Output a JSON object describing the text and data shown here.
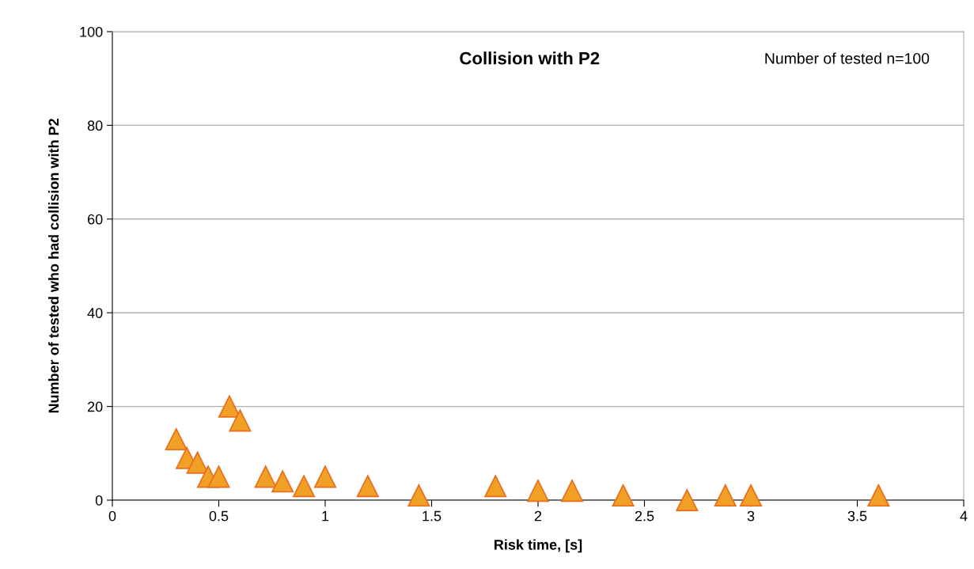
{
  "chart_data": {
    "type": "scatter",
    "title": "Collision with P2",
    "xlabel": "Risk time, [s]",
    "ylabel": "Number of tested who had collision with P2",
    "annotations": [
      "Number of tested n=100"
    ],
    "series": [
      {
        "color": "#f0a024",
        "x": [
          0.3,
          0.35,
          0.4,
          0.45,
          0.5,
          0.55,
          0.6,
          0.72,
          0.8,
          0.9,
          1,
          1.2,
          1.44,
          1.8,
          2,
          2.16,
          2.4,
          2.7,
          2.88,
          3,
          3.6
        ],
        "values": [
          13,
          9,
          8,
          5,
          5,
          20,
          17,
          5,
          4,
          3,
          5,
          3,
          1,
          3,
          2,
          2,
          1,
          0,
          1,
          1,
          1
        ]
      }
    ],
    "marker": "triangle",
    "xlim": [
      0,
      4
    ],
    "xticks": [
      0,
      0.5,
      1,
      1.5,
      2,
      2.5,
      3,
      3.5,
      4
    ],
    "ylim": [
      0,
      100
    ],
    "yticks": [
      0,
      20,
      40,
      60,
      80,
      100
    ],
    "grid": "y",
    "legend": false
  }
}
